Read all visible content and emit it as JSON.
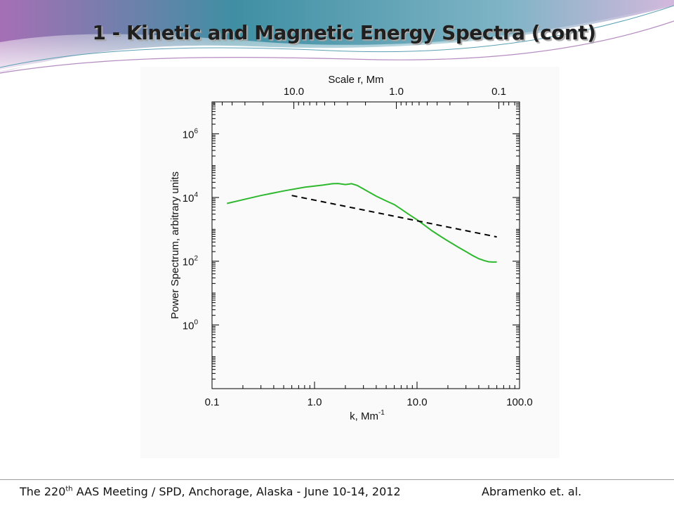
{
  "slide": {
    "title": "1 - Kinetic and Magnetic Energy Spectra (cont)",
    "footer_pre": "The 220",
    "footer_sup": "th",
    "footer_post": " AAS Meeting / SPD, Anchorage, Alaska  -  June 10-14, 2012",
    "footer_author": "Abramenko et. al.",
    "colors": {
      "theme_teal": "#3f8fa3",
      "theme_purple": "#a66fb5",
      "spectrum": "#2eb82e",
      "fit_line": "#000000"
    }
  },
  "chart_data": {
    "type": "line",
    "xlabel": "k, Mm",
    "xlabel_sup": "-1",
    "ylabel": "Power Spectrum, arbitrary units",
    "top_axis_label": "Scale r,  Mm",
    "x_scale": "log",
    "y_scale": "log",
    "xlim": [
      0.1,
      100
    ],
    "ylim": [
      0.01,
      10000000
    ],
    "x_ticks": [
      {
        "value": 0.1,
        "label": "0.1"
      },
      {
        "value": 1,
        "label": "1.0"
      },
      {
        "value": 10,
        "label": "10.0"
      },
      {
        "value": 100,
        "label": "100.0"
      }
    ],
    "y_ticks": [
      {
        "value": 1,
        "base": "10",
        "exp": "0"
      },
      {
        "value": 100,
        "base": "10",
        "exp": "2"
      },
      {
        "value": 10000,
        "base": "10",
        "exp": "4"
      },
      {
        "value": 1000000,
        "base": "10",
        "exp": "6"
      }
    ],
    "top_ticks": [
      {
        "value": 10,
        "label": "10.0"
      },
      {
        "value": 1,
        "label": "1.0"
      },
      {
        "value": 0.1,
        "label": "0.1"
      }
    ],
    "grid": false,
    "series": [
      {
        "style": "solid",
        "color": "#2eb82e",
        "x": [
          0.14,
          0.2,
          0.3,
          0.5,
          0.8,
          1.2,
          1.5,
          1.7,
          2.0,
          2.3,
          2.6,
          3.0,
          3.5,
          4.0,
          5.0,
          6.0,
          7.0,
          8.0,
          10.0,
          12.0,
          14.0,
          17.0,
          20.0,
          25.0,
          30.0,
          35.0,
          40.0,
          45.0,
          50.0,
          55.0,
          60.0
        ],
        "y": [
          6500,
          8500,
          11500,
          16000,
          21000,
          24500,
          27000,
          27500,
          25500,
          27000,
          24000,
          18500,
          14000,
          11000,
          7800,
          6000,
          4300,
          3200,
          2000,
          1300,
          900,
          600,
          430,
          280,
          200,
          150,
          120,
          105,
          96,
          94,
          95
        ]
      },
      {
        "style": "dashed",
        "color": "#000000",
        "x": [
          0.6,
          60
        ],
        "y": [
          11500,
          580
        ]
      }
    ]
  }
}
